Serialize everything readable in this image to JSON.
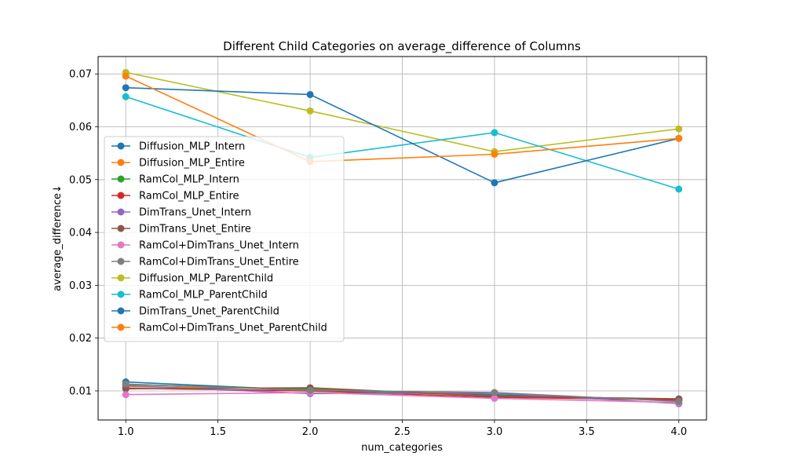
{
  "chart_data": {
    "type": "line",
    "title": "Different Child Categories on average_difference of Columns",
    "xlabel": "num_categories",
    "ylabel": "average_difference↓",
    "x": [
      1.0,
      2.0,
      3.0,
      4.0
    ],
    "xlim": [
      0.85,
      4.15
    ],
    "ylim": [
      0.0045,
      0.0733
    ],
    "xticks": [
      1.0,
      1.5,
      2.0,
      2.5,
      3.0,
      3.5,
      4.0
    ],
    "xtick_labels": [
      "1.0",
      "1.5",
      "2.0",
      "2.5",
      "3.0",
      "3.5",
      "4.0"
    ],
    "yticks": [
      0.01,
      0.02,
      0.03,
      0.04,
      0.05,
      0.06,
      0.07
    ],
    "ytick_labels": [
      "0.01",
      "0.02",
      "0.03",
      "0.04",
      "0.05",
      "0.06",
      "0.07"
    ],
    "grid": true,
    "legend_position": "center-left",
    "series": [
      {
        "name": "Diffusion_MLP_Intern",
        "color": "#1f77b4",
        "values": [
          0.0117,
          0.0101,
          0.0093,
          0.0082
        ]
      },
      {
        "name": "Diffusion_MLP_Entire",
        "color": "#ff7f0e",
        "values": [
          0.0108,
          0.0104,
          0.009,
          0.0083
        ]
      },
      {
        "name": "RamCol_MLP_Intern",
        "color": "#2ca02c",
        "values": [
          0.0112,
          0.0103,
          0.0091,
          0.0084
        ]
      },
      {
        "name": "RamCol_MLP_Entire",
        "color": "#d62728",
        "values": [
          0.0105,
          0.01,
          0.0088,
          0.0083
        ]
      },
      {
        "name": "DimTrans_Unet_Intern",
        "color": "#9467bd",
        "values": [
          0.011,
          0.0095,
          0.0096,
          0.0076
        ]
      },
      {
        "name": "DimTrans_Unet_Entire",
        "color": "#8c564b",
        "values": [
          0.0104,
          0.0106,
          0.009,
          0.0085
        ]
      },
      {
        "name": "RamCol+DimTrans_Unet_Intern",
        "color": "#e377c2",
        "values": [
          0.0093,
          0.0097,
          0.0086,
          0.0078
        ]
      },
      {
        "name": "RamCol+DimTrans_Unet_Entire",
        "color": "#7f7f7f",
        "values": [
          0.0113,
          0.0101,
          0.0097,
          0.008
        ]
      },
      {
        "name": "Diffusion_MLP_ParentChild",
        "color": "#bcbd22",
        "values": [
          0.0703,
          0.063,
          0.0553,
          0.0596
        ]
      },
      {
        "name": "RamCol_MLP_ParentChild",
        "color": "#17becf",
        "values": [
          0.0657,
          0.0542,
          0.0589,
          0.0482
        ]
      },
      {
        "name": "DimTrans_Unet_ParentChild",
        "color": "#1f77b4",
        "values": [
          0.0674,
          0.0661,
          0.0494,
          0.0578
        ]
      },
      {
        "name": "RamCol+DimTrans_Unet_ParentChild",
        "color": "#ff7f0e",
        "values": [
          0.0696,
          0.0534,
          0.0548,
          0.0578
        ]
      }
    ]
  }
}
